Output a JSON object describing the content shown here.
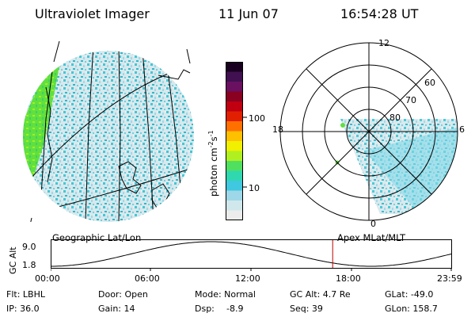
{
  "header": {
    "instrument": "Ultraviolet Imager",
    "date": "11 Jun 07",
    "time": "16:54:28 UT"
  },
  "colorbar": {
    "unit_label": "photon cm",
    "unit_sup1": "-2",
    "unit_mid": "s",
    "unit_sup2": "-1",
    "ticks": [
      "100",
      "10"
    ],
    "colors": [
      "#1a0020",
      "#401050",
      "#6a1060",
      "#8a0020",
      "#c00010",
      "#e02000",
      "#ff7000",
      "#ffc000",
      "#f0f000",
      "#b0f020",
      "#50e060",
      "#30d8b0",
      "#40c8e0",
      "#9ed8e8",
      "#d0e8ec",
      "#ececec"
    ]
  },
  "left_map": {
    "label": "Geographic Lat/Lon"
  },
  "polar_map": {
    "label": "Apex MLat/MLT",
    "lat_labels": [
      "60",
      "70",
      "80"
    ],
    "mlt_labels": {
      "top": "12",
      "left": "18",
      "right": "6",
      "bottom": "0"
    }
  },
  "altitude_plot": {
    "ylabel": "GC Alt",
    "yticks": [
      "9.0",
      "1.8"
    ],
    "xticks": [
      "00:00",
      "06:00",
      "12:00",
      "18:00",
      "23:59"
    ],
    "current_time_fraction": 0.704
  },
  "info": {
    "flt": "Flt: LBHL",
    "ip": "IP: 36.0",
    "door": "Door: Open",
    "gain": "Gain: 14",
    "mode": "Mode: Normal",
    "dsp_label": "Dsp:",
    "dsp_value": "-8.9",
    "gc_alt": "GC Alt: 4.7 Re",
    "seq": "Seq: 39",
    "glat": "GLat: -49.0",
    "glon": "GLon: 158.7"
  }
}
